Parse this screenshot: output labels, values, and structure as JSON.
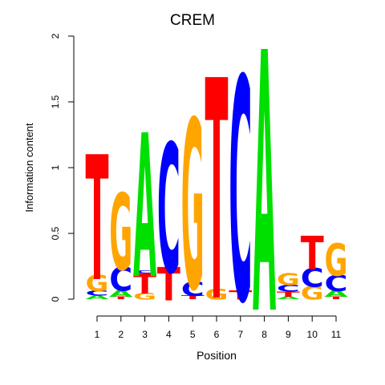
{
  "chart_data": {
    "type": "sequence-logo",
    "title": "CREM",
    "xlabel": "Position",
    "ylabel": "Information content",
    "ylim": [
      0,
      2
    ],
    "yticks": [
      "0",
      "0.5",
      "1",
      "1.5",
      "2"
    ],
    "positions": [
      "1",
      "2",
      "3",
      "4",
      "5",
      "6",
      "7",
      "8",
      "9",
      "10",
      "11"
    ],
    "colors": {
      "A": "#00e000",
      "C": "#0000ff",
      "G": "#ffa500",
      "T": "#ff0000"
    },
    "columns": [
      [
        [
          "A",
          0.03
        ],
        [
          "C",
          0.04
        ],
        [
          "G",
          0.12
        ],
        [
          "T",
          0.93
        ]
      ],
      [
        [
          "T",
          0.02
        ],
        [
          "A",
          0.05
        ],
        [
          "C",
          0.18
        ],
        [
          "G",
          0.57
        ]
      ],
      [
        [
          "G",
          0.05
        ],
        [
          "T",
          0.15
        ],
        [
          "C",
          0.02
        ],
        [
          "A",
          1.07
        ]
      ],
      [
        [
          "T",
          0.25
        ],
        [
          "C",
          0.96
        ]
      ],
      [
        [
          "T",
          0.03
        ],
        [
          "C",
          0.11
        ],
        [
          "G",
          1.26
        ]
      ],
      [
        [
          "G",
          0.08
        ],
        [
          "T",
          1.64
        ]
      ],
      [
        [
          "T",
          0.07
        ],
        [
          "C",
          1.66
        ]
      ],
      [
        [
          "A",
          1.94
        ]
      ],
      [
        [
          "A",
          0.02
        ],
        [
          "T",
          0.04
        ],
        [
          "C",
          0.05
        ],
        [
          "G",
          0.09
        ]
      ],
      [
        [
          "G",
          0.1
        ],
        [
          "C",
          0.14
        ],
        [
          "T",
          0.25
        ]
      ],
      [
        [
          "T",
          0.02
        ],
        [
          "A",
          0.05
        ],
        [
          "C",
          0.12
        ],
        [
          "G",
          0.24
        ]
      ]
    ]
  }
}
